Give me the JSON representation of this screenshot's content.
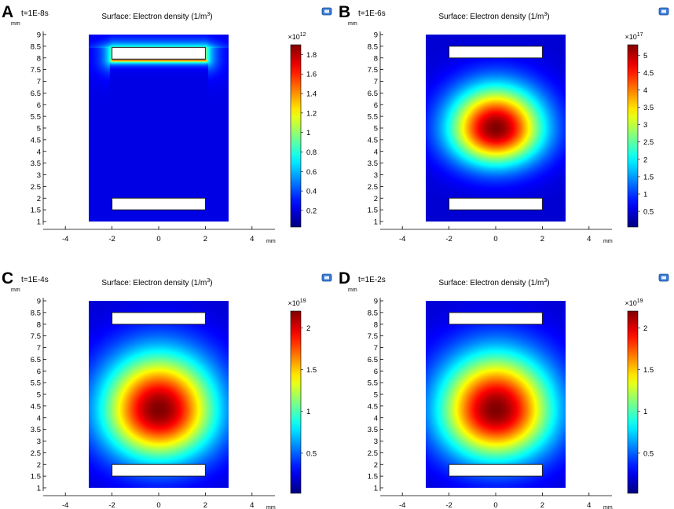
{
  "figure": {
    "panels": [
      {
        "letter": "A",
        "time": "t=1E-8s",
        "title_main": "Surface: Electron density (1/m",
        "title_sup": "3",
        "title_tail": ")",
        "colorbar": {
          "exponent_base": "×10",
          "exponent_power": "12",
          "ticks": [
            {
              "value": 0.2,
              "label": "0.2"
            },
            {
              "value": 0.4,
              "label": "0.4"
            },
            {
              "value": 0.6,
              "label": "0.6"
            },
            {
              "value": 0.8,
              "label": "0.8"
            },
            {
              "value": 1.0,
              "label": "1"
            },
            {
              "value": 1.2,
              "label": "1.2"
            },
            {
              "value": 1.4,
              "label": "1.4"
            },
            {
              "value": 1.6,
              "label": "1.6"
            },
            {
              "value": 1.8,
              "label": "1.8"
            }
          ],
          "min": 0.03,
          "max": 1.9
        }
      },
      {
        "letter": "B",
        "time": "t=1E-6s",
        "title_main": "Surface: Electron density (1/m",
        "title_sup": "3",
        "title_tail": ")",
        "colorbar": {
          "exponent_base": "×10",
          "exponent_power": "17",
          "ticks": [
            {
              "value": 0.5,
              "label": "0.5"
            },
            {
              "value": 1,
              "label": "1"
            },
            {
              "value": 1.5,
              "label": "1.5"
            },
            {
              "value": 2,
              "label": "2"
            },
            {
              "value": 2.5,
              "label": "2.5"
            },
            {
              "value": 3,
              "label": "3"
            },
            {
              "value": 3.5,
              "label": "3.5"
            },
            {
              "value": 4,
              "label": "4"
            },
            {
              "value": 4.5,
              "label": "4.5"
            },
            {
              "value": 5,
              "label": "5"
            }
          ],
          "min": 0.05,
          "max": 5.3
        }
      },
      {
        "letter": "C",
        "time": "t=1E-4s",
        "title_main": "Surface: Electron density (1/m",
        "title_sup": "3",
        "title_tail": ")",
        "colorbar": {
          "exponent_base": "×10",
          "exponent_power": "19",
          "ticks": [
            {
              "value": 0.5,
              "label": "0.5"
            },
            {
              "value": 1,
              "label": "1"
            },
            {
              "value": 1.5,
              "label": "1.5"
            },
            {
              "value": 2,
              "label": "2"
            }
          ],
          "min": 0.02,
          "max": 2.2
        }
      },
      {
        "letter": "D",
        "time": "t=1E-2s",
        "title_main": "Surface: Electron density (1/m",
        "title_sup": "3",
        "title_tail": ")",
        "colorbar": {
          "exponent_base": "×10",
          "exponent_power": "19",
          "ticks": [
            {
              "value": 0.5,
              "label": "0.5"
            },
            {
              "value": 1,
              "label": "1"
            },
            {
              "value": 1.5,
              "label": "1.5"
            },
            {
              "value": 2,
              "label": "2"
            }
          ],
          "min": 0.02,
          "max": 2.2
        }
      }
    ],
    "axis_unit": "mm",
    "x_ticks": [
      "-4",
      "-2",
      "0",
      "2",
      "4"
    ],
    "y_ticks": [
      "1",
      "1.5",
      "2",
      "2.5",
      "3",
      "3.5",
      "4",
      "4.5",
      "5",
      "5.5",
      "6",
      "6.5",
      "7",
      "7.5",
      "8",
      "8.5",
      "9"
    ],
    "colormap": "jet",
    "colors": {
      "bar_low": "#00008f",
      "bar_high": "#800000",
      "electrode_fill": "#ffffff"
    }
  },
  "chart_data": [
    {
      "type": "heatmap",
      "panel": "A",
      "time": "t=1E-8s",
      "title": "Surface: Electron density (1/m3)",
      "xlabel": "mm",
      "ylabel": "mm",
      "xlim": [
        -5.3,
        5.3
      ],
      "ylim": [
        0.75,
        9.2
      ],
      "domain": {
        "x": [
          -3,
          3
        ],
        "y": [
          1,
          9
        ]
      },
      "electrodes": [
        {
          "x": [
            -2,
            2
          ],
          "y": [
            7.95,
            8.45
          ]
        },
        {
          "x": [
            -2,
            2
          ],
          "y": [
            1.5,
            2.0
          ]
        }
      ],
      "colorbar": {
        "label": "×10^12",
        "range": [
          0,
          1.9
        ]
      },
      "peak": {
        "x": 0,
        "y": 7.95,
        "value_approx": 1.9
      },
      "description_values": "density concentrated in thin layer around upper electrode"
    },
    {
      "type": "heatmap",
      "panel": "B",
      "time": "t=1E-6s",
      "title": "Surface: Electron density (1/m3)",
      "xlabel": "mm",
      "ylabel": "mm",
      "xlim": [
        -5.3,
        5.3
      ],
      "ylim": [
        0.75,
        9.2
      ],
      "domain": {
        "x": [
          -3,
          3
        ],
        "y": [
          1,
          9
        ]
      },
      "electrodes": [
        {
          "x": [
            -2,
            2
          ],
          "y": [
            8.0,
            8.5
          ]
        },
        {
          "x": [
            -2,
            2
          ],
          "y": [
            1.5,
            2.0
          ]
        }
      ],
      "colorbar": {
        "label": "×10^17",
        "range": [
          0,
          5.3
        ]
      },
      "peak": {
        "x": 0,
        "y": 5.0,
        "value_approx": 5.3
      }
    },
    {
      "type": "heatmap",
      "panel": "C",
      "time": "t=1E-4s",
      "title": "Surface: Electron density (1/m3)",
      "xlabel": "mm",
      "ylabel": "mm",
      "xlim": [
        -5.3,
        5.3
      ],
      "ylim": [
        0.75,
        9.2
      ],
      "domain": {
        "x": [
          -3,
          3
        ],
        "y": [
          1,
          9
        ]
      },
      "electrodes": [
        {
          "x": [
            -2,
            2
          ],
          "y": [
            8.0,
            8.5
          ]
        },
        {
          "x": [
            -2,
            2
          ],
          "y": [
            1.5,
            2.0
          ]
        }
      ],
      "colorbar": {
        "label": "×10^19",
        "range": [
          0,
          2.2
        ]
      },
      "peak": {
        "x": 0,
        "y": 4.4,
        "value_approx": 2.2
      }
    },
    {
      "type": "heatmap",
      "panel": "D",
      "time": "t=1E-2s",
      "title": "Surface: Electron density (1/m3)",
      "xlabel": "mm",
      "ylabel": "mm",
      "xlim": [
        -5.3,
        5.3
      ],
      "ylim": [
        0.75,
        9.2
      ],
      "domain": {
        "x": [
          -3,
          3
        ],
        "y": [
          1,
          9
        ]
      },
      "electrodes": [
        {
          "x": [
            -2,
            2
          ],
          "y": [
            8.0,
            8.5
          ]
        },
        {
          "x": [
            -2,
            2
          ],
          "y": [
            1.5,
            2.0
          ]
        }
      ],
      "colorbar": {
        "label": "×10^19",
        "range": [
          0,
          2.2
        ]
      },
      "peak": {
        "x": 0,
        "y": 4.4,
        "value_approx": 2.2
      }
    }
  ]
}
